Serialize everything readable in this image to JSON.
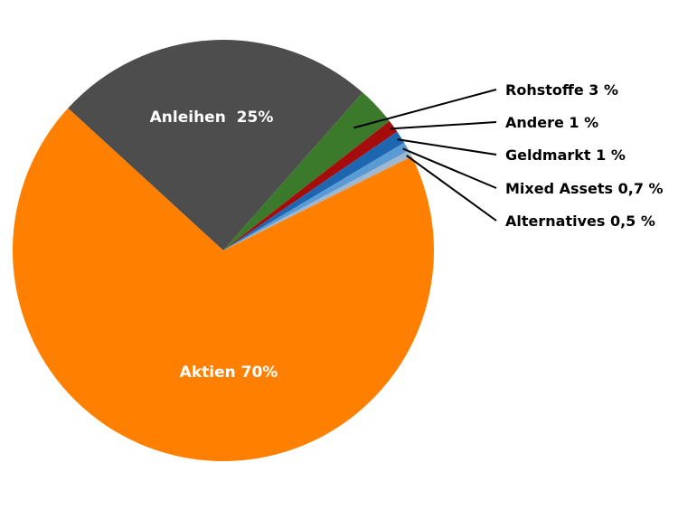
{
  "chart_data": {
    "type": "pie",
    "title": "",
    "start_slice": "Aktien",
    "direction": "counterclockwise-from-Anleihen",
    "slices": [
      {
        "name": "Anleihen",
        "value": 25,
        "label": "Anleihen  25%",
        "color": "#4d4d4d",
        "label_position": "inside"
      },
      {
        "name": "Rohstoffe",
        "value": 3,
        "label": "Rohstoffe 3 %",
        "color": "#3a7a2a",
        "label_position": "outside"
      },
      {
        "name": "Andere",
        "value": 1,
        "label": "Andere 1 %",
        "color": "#a50d0d",
        "label_position": "outside"
      },
      {
        "name": "Geldmarkt",
        "value": 1,
        "label": "Geldmarkt 1 %",
        "color": "#1f66b0",
        "label_position": "outside"
      },
      {
        "name": "Mixed Assets",
        "value": 0.7,
        "label": "Mixed Assets 0,7 %",
        "color": "#5b9bd5",
        "label_position": "outside"
      },
      {
        "name": "Alternatives",
        "value": 0.5,
        "label": "Alternatives 0,5 %",
        "color": "#9fb8d0",
        "label_position": "outside"
      },
      {
        "name": "Aktien",
        "value": 70,
        "label": "Aktien 70%",
        "color": "#ff8000",
        "label_position": "inside"
      }
    ]
  }
}
